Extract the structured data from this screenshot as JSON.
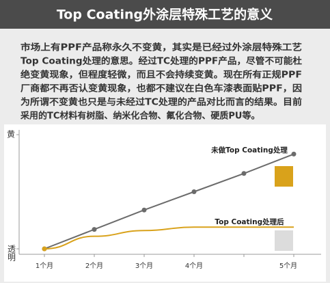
{
  "chart_data": {
    "type": "line",
    "title": "Top Coating外涂层特殊工艺的意义",
    "subtitle": [
      "市场上有PPF产品称永久不变黄，其实是已经过外涂层特殊工艺",
      "Top Coating处理的意思。经过TC处理的PPF产品，尽管不可能杜",
      "绝变黄现象，但程度轻微，而且不会持续变黄。现在所有正规PPF",
      "厂商都不再否认变黄现象，也都不建议在白色车漆表面贴PPF，因",
      "为所谓不变黄也只是与未经过TC处理的产品对比而言的结果。目前",
      "采用的TC材料有树脂、纳米化合物、氟化合物、硬质PU等。"
    ],
    "categories": [
      "1个月",
      "2个月",
      "3个月",
      "4个月",
      null,
      "5个月"
    ],
    "series": [
      {
        "name": "未做Top Coating处理",
        "color": "#6b6b6b",
        "values": [
          0,
          17,
          34,
          50,
          66,
          83
        ]
      },
      {
        "name": "Top Coating处理后",
        "color": "#d9a21b",
        "values": [
          0,
          11,
          16,
          19,
          19,
          19
        ]
      }
    ],
    "ylim": [
      0,
      100
    ],
    "yticks": [
      {
        "value": 0,
        "label": "透明"
      },
      {
        "value": 100,
        "label": "黄"
      }
    ],
    "grid": false
  }
}
